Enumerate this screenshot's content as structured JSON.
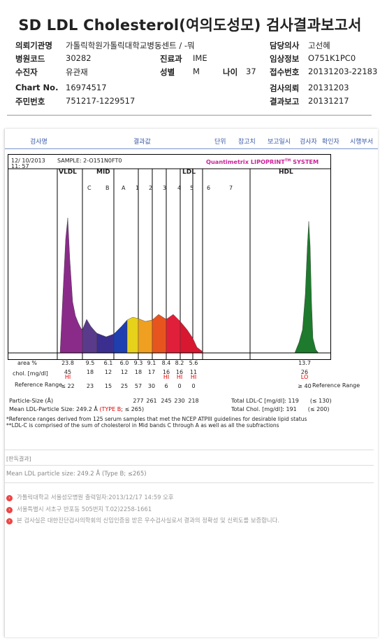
{
  "title": "SD LDL Cholesterol(여의도성모) 검사결과보고서",
  "info": {
    "institution_label": "의뢰기관명",
    "institution": "가톨릭학원가톨릭대학교병동센트 / -뭐",
    "doctor_label": "담당의사",
    "doctor": "고선혜",
    "hospital_code_label": "병원코드",
    "hospital_code": "30282",
    "dept_label": "진료과",
    "dept": "IME",
    "clinical_label": "임상정보",
    "clinical": "O751K1PC0",
    "patient_label": "수진자",
    "patient": "유관재",
    "sex_label": "성별",
    "sex": "M",
    "age_label": "나이",
    "age": "37",
    "receipt_label": "접수번호",
    "receipt": "20131203-22183",
    "chart_label": "Chart No.",
    "chart": "16974517",
    "request_label": "검사의뢰",
    "request": "20131203",
    "ssn_label": "주민번호",
    "ssn": "751217-1229517",
    "report_label": "결과보고",
    "report": "20131217"
  },
  "tabs": [
    "검사명",
    "결과값",
    "단위",
    "참고치",
    "보고일시",
    "검사자",
    "확인자",
    "시행부서"
  ],
  "graph": {
    "date": "12/ 10/2013",
    "time": "11: 57",
    "sample": "SAMPLE:  2-O151N0FT0",
    "brand": "Quantimetrix LIPOPRINT",
    "brand_tm": "TM",
    "brand_suffix": " SYSTEM",
    "band_groups": [
      "VLDL",
      "MID",
      "LDL",
      "HDL"
    ],
    "bands": [
      "C",
      "B",
      "A",
      "1",
      "2",
      "3",
      "4",
      "5",
      "6",
      "7"
    ],
    "area_label": "area %",
    "area": [
      "23.8",
      "9.5",
      "6.1",
      "6.0",
      "9.3",
      "9.1",
      "8.4",
      "8.2",
      "5.6",
      "13.7"
    ],
    "chol_label": "chol. [mg/dl]",
    "chol": [
      "45",
      "18",
      "12",
      "12",
      "18",
      "17",
      "16",
      "16",
      "11",
      "26"
    ],
    "chol_flags": [
      "HI",
      "",
      "",
      "",
      "",
      "",
      "HI",
      "HI",
      "HI",
      "LO"
    ],
    "ref_label": "Reference Range",
    "ref": [
      "≤ 22",
      "23",
      "15",
      "25",
      "57",
      "30",
      "6",
      "0",
      "0",
      "≥ 40"
    ],
    "ref_right_label": "Reference Range",
    "ps_label": "Particle-Size (Å)",
    "ps": [
      "277",
      "261",
      "245",
      "230",
      "218"
    ],
    "mean_ps_label": "Mean LDL-Particle Size:",
    "mean_ps": "249.2 Å",
    "mean_type": "(TYPE B",
    "mean_type_ref": "; ≤ 265)",
    "total_ldlc_label": "Total LDL-C [mg/dl]:",
    "total_ldlc": "119",
    "total_ldlc_ref": "(≤ 130)",
    "total_chol_label": "Total Chol. [mg/dl]:",
    "total_chol": "191",
    "total_chol_ref": "(≤ 200)",
    "note1": "*Reference ranges derived from 125 serum samples that met the NCEP ATPIII guidelines for desirable lipid status",
    "note2": "**LDL-C is comprised of the sum of cholesterol in Mid bands C through A as well as all the subfractions"
  },
  "judge_title": "[판독결과]",
  "mean_text": "Mean LDL particle size: 249.2 Å (Type B; ≤265)",
  "footer": [
    "가톨릭대학교 서울성모병원       출력일자:2013/12/17 14:59 오후",
    "서울특별시 서초구 반포동 505번지 T.02)2258-1661",
    "본 검사실은 대한진단검사의학회의 신임인증을 받은 우수검사실로서 결과의 정확성 및 신뢰도를 보증합니다."
  ],
  "colors": {
    "vldl": "#8a2b8a",
    "mid_c": "#5a3a8a",
    "mid_b": "#3a2f8f",
    "mid_a": "#1f3fb0",
    "ldl1": "#e6d21a",
    "ldl2": "#f0a020",
    "ldl3": "#e8541e",
    "ldl4": "#e0203a",
    "ldl5": "#d81830",
    "hdl": "#1e7a2c",
    "brand": "#cc2299"
  }
}
